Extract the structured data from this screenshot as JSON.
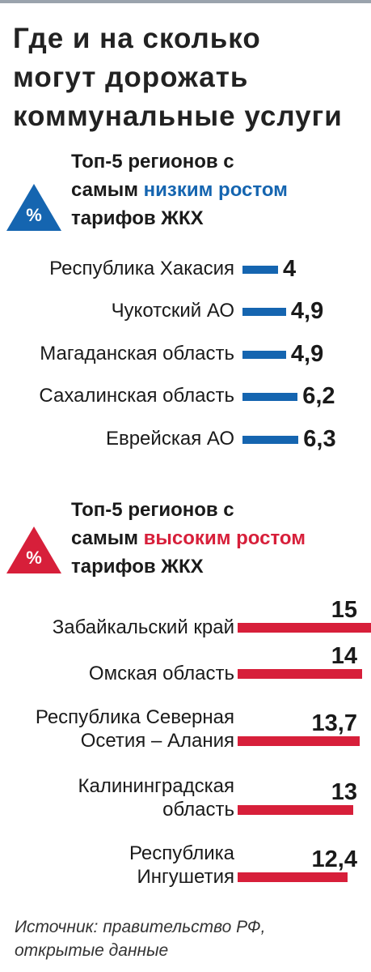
{
  "title": "Где и на сколько\nмогут дорожать\nкоммунальные услуги",
  "source": "Источник: правительство РФ,\nоткрытые данные",
  "chart_data": [
    {
      "type": "bar",
      "orientation": "horizontal",
      "icon_label": "%",
      "subtitle_parts": [
        "Топ-5 регионов с",
        "самым",
        "низким ростом",
        "тарифов ЖКХ"
      ],
      "color": "#1565b0",
      "categories": [
        "Республика Хакасия",
        "Чукотский АО",
        "Магаданская область",
        "Сахалинская область",
        "Еврейская АО"
      ],
      "values": [
        4,
        4.9,
        4.9,
        6.2,
        6.3
      ],
      "value_labels": [
        "4",
        "4,9",
        "4,9",
        "6,2",
        "6,3"
      ]
    },
    {
      "type": "bar",
      "orientation": "horizontal",
      "icon_label": "%",
      "subtitle_parts": [
        "Топ-5 регионов с",
        "самым",
        "высоким ростом",
        "тарифов ЖКХ"
      ],
      "color": "#d71f3a",
      "categories": [
        "Забайкальский край",
        "Омская область",
        "Республика Северная\nОсетия – Алания",
        "Калининградская\nобласть",
        "Республика\nИнгушетия"
      ],
      "values": [
        15,
        14,
        13.7,
        13,
        12.4
      ],
      "value_labels": [
        "15",
        "14",
        "13,7",
        "13",
        "12,4"
      ]
    }
  ]
}
